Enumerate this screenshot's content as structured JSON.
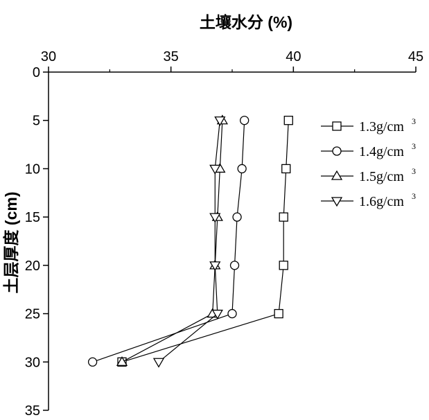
{
  "chart_data": {
    "type": "line",
    "xlabel": "土壤水分 (%)",
    "ylabel": "土层厚度 (cm)",
    "xlim": [
      30,
      45
    ],
    "ylim": [
      0,
      35
    ],
    "x_axis_position": "top",
    "y_axis_inverted": true,
    "xticks": [
      30,
      35,
      40,
      45
    ],
    "yticks": [
      0,
      5,
      10,
      15,
      20,
      25,
      30,
      35
    ],
    "grid": false,
    "legend_position": "right",
    "series": [
      {
        "name": "1.3g/cm",
        "name_sup": "3",
        "marker": "square",
        "points": [
          {
            "x": 39.8,
            "y": 5
          },
          {
            "x": 39.7,
            "y": 10
          },
          {
            "x": 39.6,
            "y": 15
          },
          {
            "x": 39.6,
            "y": 20
          },
          {
            "x": 39.4,
            "y": 25
          },
          {
            "x": 33.0,
            "y": 30
          }
        ]
      },
      {
        "name": "1.4g/cm",
        "name_sup": "3",
        "marker": "circle",
        "points": [
          {
            "x": 38.0,
            "y": 5
          },
          {
            "x": 37.9,
            "y": 10
          },
          {
            "x": 37.7,
            "y": 15
          },
          {
            "x": 37.6,
            "y": 20
          },
          {
            "x": 37.5,
            "y": 25
          },
          {
            "x": 31.8,
            "y": 30
          }
        ]
      },
      {
        "name": "1.5g/cm",
        "name_sup": "3",
        "marker": "triangle-up",
        "points": [
          {
            "x": 37.1,
            "y": 5
          },
          {
            "x": 37.0,
            "y": 10
          },
          {
            "x": 36.9,
            "y": 15
          },
          {
            "x": 36.8,
            "y": 20
          },
          {
            "x": 36.7,
            "y": 25
          },
          {
            "x": 33.0,
            "y": 30
          }
        ]
      },
      {
        "name": "1.6g/cm",
        "name_sup": "3",
        "marker": "triangle-down",
        "points": [
          {
            "x": 37.0,
            "y": 5
          },
          {
            "x": 36.8,
            "y": 10
          },
          {
            "x": 36.8,
            "y": 15
          },
          {
            "x": 36.8,
            "y": 20
          },
          {
            "x": 36.9,
            "y": 25
          },
          {
            "x": 34.5,
            "y": 30
          }
        ]
      }
    ]
  }
}
